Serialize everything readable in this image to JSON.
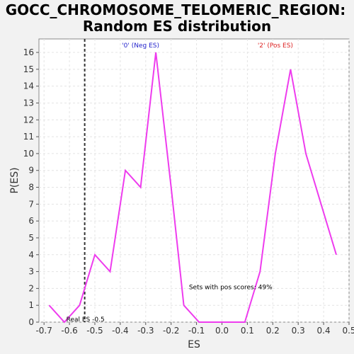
{
  "chart_data": {
    "type": "line",
    "title_line1": "GOCC_CHROMOSOME_TELOMERIC_REGION:",
    "title_line2": "Random ES distribution",
    "xlabel": "ES",
    "ylabel": "P(ES)",
    "xlim": [
      -0.72,
      0.5
    ],
    "ylim": [
      0,
      16.8
    ],
    "x_ticks": [
      "-0.7",
      "-0.6",
      "-0.5",
      "-0.4",
      "-0.3",
      "-0.2",
      "-0.1",
      "0.0",
      "0.1",
      "0.2",
      "0.3",
      "0.4",
      "0.5"
    ],
    "x_tick_values": [
      -0.7,
      -0.6,
      -0.5,
      -0.4,
      -0.3,
      -0.2,
      -0.1,
      0.0,
      0.1,
      0.2,
      0.3,
      0.4,
      0.5
    ],
    "y_ticks": [
      "0",
      "1",
      "2",
      "3",
      "4",
      "5",
      "6",
      "7",
      "8",
      "9",
      "10",
      "11",
      "12",
      "13",
      "14",
      "15",
      "16"
    ],
    "y_tick_values": [
      0,
      1,
      2,
      3,
      4,
      5,
      6,
      7,
      8,
      9,
      10,
      11,
      12,
      13,
      14,
      15,
      16
    ],
    "grid": true,
    "series": [
      {
        "color": "#ee3cee",
        "x": [
          -0.68,
          -0.62,
          -0.56,
          -0.5,
          -0.44,
          -0.38,
          -0.32,
          -0.26,
          -0.2,
          -0.15,
          -0.09,
          -0.03,
          0.03,
          0.09,
          0.15,
          0.21,
          0.27,
          0.33,
          0.39,
          0.45
        ],
        "y": [
          1,
          0,
          1,
          4,
          3,
          9,
          8,
          16,
          8,
          1,
          0,
          0,
          0,
          0,
          3,
          10,
          15,
          10,
          7,
          4
        ]
      }
    ],
    "real_es": {
      "value": -0.54,
      "label": "Real ES -0.5",
      "color": "#333333"
    },
    "annotations": {
      "neg": {
        "text": "'0' (Neg ES)",
        "color": "#2222cc"
      },
      "pos": {
        "text": "'2' (Pos ES)",
        "color": "#dd2222"
      },
      "pos_scores": {
        "text": "Sets with pos scores: 49%",
        "color": "#000000"
      }
    }
  }
}
